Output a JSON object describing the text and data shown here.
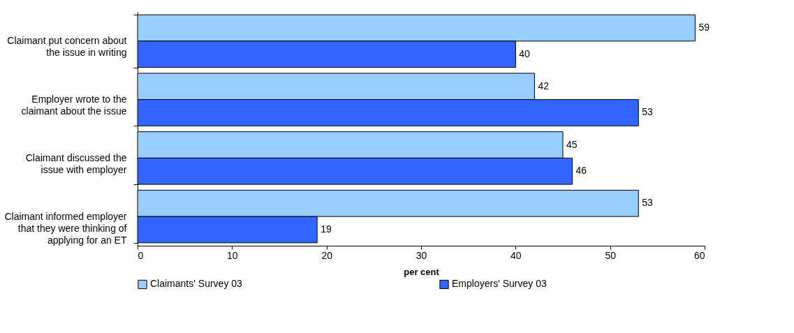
{
  "chart_data": {
    "type": "bar",
    "orientation": "horizontal",
    "xlabel": "per cent",
    "categories": [
      "Claimant put concern about the issue in writing",
      "Employer wrote to the claimant about the issue",
      "Claimant discussed the issue with employer",
      "Claimant informed employer that they were thinking of applying for an ET"
    ],
    "series": [
      {
        "name": "Claimants' Survey 03",
        "color": "#99ccff",
        "values": [
          59,
          42,
          45,
          53
        ]
      },
      {
        "name": "Employers' Survey 03",
        "color": "#3366ff",
        "values": [
          40,
          53,
          46,
          19
        ]
      }
    ],
    "xlim": [
      0,
      60
    ],
    "xticks": [
      0,
      10,
      20,
      30,
      40,
      50,
      60
    ],
    "data_labels": true,
    "grid": false,
    "legend": "bottom"
  }
}
